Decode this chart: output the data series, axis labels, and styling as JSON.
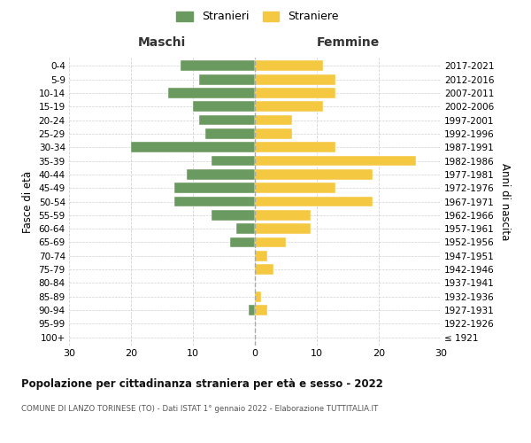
{
  "age_groups": [
    "100+",
    "95-99",
    "90-94",
    "85-89",
    "80-84",
    "75-79",
    "70-74",
    "65-69",
    "60-64",
    "55-59",
    "50-54",
    "45-49",
    "40-44",
    "35-39",
    "30-34",
    "25-29",
    "20-24",
    "15-19",
    "10-14",
    "5-9",
    "0-4"
  ],
  "birth_years": [
    "≤ 1921",
    "1922-1926",
    "1927-1931",
    "1932-1936",
    "1937-1941",
    "1942-1946",
    "1947-1951",
    "1952-1956",
    "1957-1961",
    "1962-1966",
    "1967-1971",
    "1972-1976",
    "1977-1981",
    "1982-1986",
    "1987-1991",
    "1992-1996",
    "1997-2001",
    "2002-2006",
    "2007-2011",
    "2012-2016",
    "2017-2021"
  ],
  "maschi": [
    0,
    0,
    1,
    0,
    0,
    0,
    0,
    4,
    3,
    7,
    13,
    13,
    11,
    7,
    20,
    8,
    9,
    10,
    14,
    9,
    12
  ],
  "femmine": [
    0,
    0,
    2,
    1,
    0,
    3,
    2,
    5,
    9,
    9,
    19,
    13,
    19,
    26,
    13,
    6,
    6,
    11,
    13,
    13,
    11
  ],
  "color_maschi": "#6a9a5f",
  "color_femmine": "#f5c842",
  "xlim": 30,
  "title": "Popolazione per cittadinanza straniera per età e sesso - 2022",
  "subtitle": "COMUNE DI LANZO TORINESE (TO) - Dati ISTAT 1° gennaio 2022 - Elaborazione TUTTITALIA.IT",
  "ylabel_left": "Fasce di età",
  "ylabel_right": "Anni di nascita",
  "header_left": "Maschi",
  "header_right": "Femmine",
  "legend_maschi": "Stranieri",
  "legend_femmine": "Straniere",
  "background_color": "#ffffff",
  "grid_color": "#cccccc"
}
